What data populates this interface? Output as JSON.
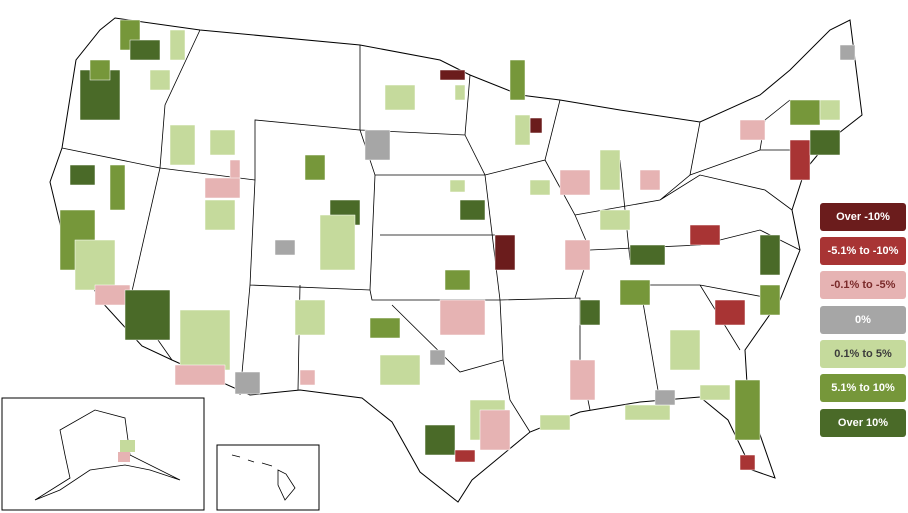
{
  "legend": {
    "items": [
      {
        "label": "Over -10%",
        "color": "#6b1c1c"
      },
      {
        "label": "-5.1% to -10%",
        "color": "#a83434"
      },
      {
        "label": "-0.1% to -5%",
        "color": "#e6b3b3"
      },
      {
        "label": "0%",
        "color": "#a6a6a6"
      },
      {
        "label": "0.1% to 5%",
        "color": "#c5da9c"
      },
      {
        "label": "5.1% to 10%",
        "color": "#76973a"
      },
      {
        "label": "Over 10%",
        "color": "#4a6a28"
      }
    ]
  }
}
